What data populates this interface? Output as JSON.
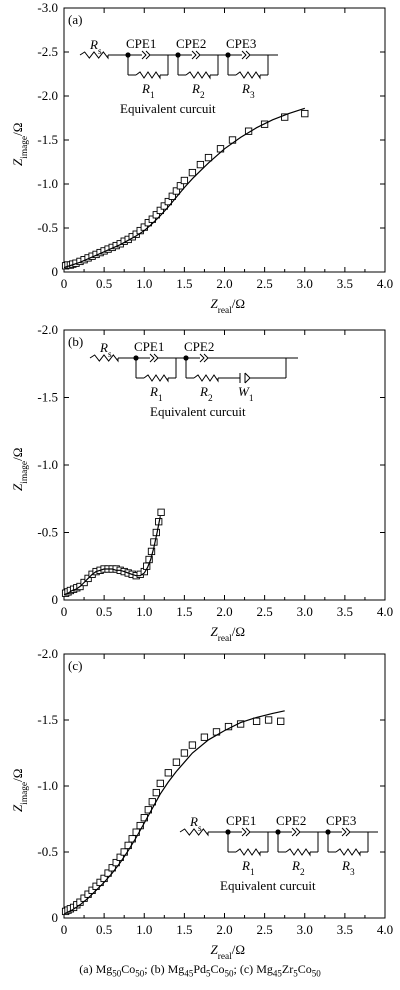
{
  "figure": {
    "caption_parts": [
      {
        "label": "(a)",
        "formula": "Mg50Co50",
        "sep": ";"
      },
      {
        "label": "(b)",
        "formula": "Mg45Pd5Co50",
        "sep": ";"
      },
      {
        "label": "(c)",
        "formula": "Mg45Zr5Co50",
        "sep": ""
      }
    ]
  },
  "chart_data": [
    {
      "type": "scatter",
      "panel_label": "(a)",
      "xlabel": "Zreal/Ω",
      "ylabel": "Zimage/Ω",
      "xlim": [
        0,
        4.0
      ],
      "ylim": [
        0,
        -3.0
      ],
      "xticks": [
        "0",
        "0.5",
        "1.0",
        "1.5",
        "2.0",
        "2.5",
        "3.0",
        "3.5",
        "4.0"
      ],
      "yticks": [
        "0",
        "-0.5",
        "-1.0",
        "-1.5",
        "-2.0",
        "-2.5",
        "-3.0"
      ],
      "series": [
        {
          "kind": "markers",
          "x": [
            0.02,
            0.05,
            0.08,
            0.11,
            0.15,
            0.2,
            0.25,
            0.3,
            0.35,
            0.4,
            0.45,
            0.5,
            0.55,
            0.6,
            0.65,
            0.7,
            0.75,
            0.8,
            0.85,
            0.9,
            0.95,
            1.0,
            1.05,
            1.1,
            1.15,
            1.2,
            1.25,
            1.3,
            1.35,
            1.4,
            1.45,
            1.5,
            1.6,
            1.7,
            1.8,
            1.95,
            2.1,
            2.3,
            2.5,
            2.75,
            3.0
          ],
          "y": [
            -0.07,
            -0.08,
            -0.08,
            -0.09,
            -0.1,
            -0.12,
            -0.14,
            -0.16,
            -0.18,
            -0.2,
            -0.22,
            -0.24,
            -0.26,
            -0.28,
            -0.3,
            -0.32,
            -0.35,
            -0.37,
            -0.4,
            -0.43,
            -0.47,
            -0.51,
            -0.56,
            -0.6,
            -0.65,
            -0.7,
            -0.75,
            -0.8,
            -0.86,
            -0.92,
            -0.98,
            -1.04,
            -1.13,
            -1.22,
            -1.3,
            -1.4,
            -1.5,
            -1.6,
            -1.68,
            -1.76,
            -1.8
          ]
        },
        {
          "kind": "fit",
          "x": [
            0.0,
            0.1,
            0.2,
            0.3,
            0.4,
            0.5,
            0.6,
            0.7,
            0.8,
            0.9,
            1.0,
            1.1,
            1.2,
            1.3,
            1.4,
            1.5,
            1.6,
            1.7,
            1.8,
            2.0,
            2.2,
            2.4,
            2.6,
            2.8,
            3.0
          ],
          "y": [
            -0.05,
            -0.08,
            -0.11,
            -0.15,
            -0.19,
            -0.23,
            -0.27,
            -0.31,
            -0.36,
            -0.41,
            -0.47,
            -0.55,
            -0.64,
            -0.74,
            -0.85,
            -0.96,
            -1.06,
            -1.15,
            -1.24,
            -1.4,
            -1.53,
            -1.64,
            -1.73,
            -1.8,
            -1.86
          ]
        }
      ],
      "inset": {
        "title": "Equivalent curcuit",
        "elements": [
          "Rs",
          "CPE1",
          "CPE2",
          "CPE3",
          "R1",
          "R2",
          "R3"
        ]
      }
    },
    {
      "type": "scatter",
      "panel_label": "(b)",
      "xlabel": "Zreal/Ω",
      "ylabel": "Zimage/Ω",
      "xlim": [
        0,
        4.0
      ],
      "ylim": [
        0,
        -2.0
      ],
      "xticks": [
        "0",
        "0.5",
        "1.0",
        "1.5",
        "2.0",
        "2.5",
        "3.0",
        "3.5",
        "4.0"
      ],
      "yticks": [
        "0",
        "-0.5",
        "-1.0",
        "-1.5",
        "-2.0"
      ],
      "series": [
        {
          "kind": "markers",
          "x": [
            0.02,
            0.05,
            0.08,
            0.12,
            0.16,
            0.2,
            0.25,
            0.3,
            0.35,
            0.4,
            0.45,
            0.5,
            0.55,
            0.6,
            0.65,
            0.7,
            0.75,
            0.8,
            0.85,
            0.9,
            0.95,
            1.0,
            1.03,
            1.06,
            1.09,
            1.12,
            1.15,
            1.18,
            1.21
          ],
          "y": [
            -0.05,
            -0.06,
            -0.07,
            -0.08,
            -0.09,
            -0.1,
            -0.13,
            -0.16,
            -0.19,
            -0.21,
            -0.22,
            -0.23,
            -0.23,
            -0.23,
            -0.23,
            -0.22,
            -0.21,
            -0.2,
            -0.19,
            -0.18,
            -0.19,
            -0.21,
            -0.25,
            -0.3,
            -0.36,
            -0.43,
            -0.5,
            -0.58,
            -0.65
          ]
        },
        {
          "kind": "fit",
          "x": [
            0.0,
            0.05,
            0.1,
            0.15,
            0.2,
            0.25,
            0.3,
            0.35,
            0.4,
            0.45,
            0.5,
            0.55,
            0.6,
            0.65,
            0.7,
            0.75,
            0.8,
            0.85,
            0.9,
            0.95,
            1.0,
            1.04,
            1.08,
            1.12,
            1.16,
            1.2
          ],
          "y": [
            -0.04,
            -0.05,
            -0.07,
            -0.08,
            -0.1,
            -0.13,
            -0.16,
            -0.19,
            -0.21,
            -0.22,
            -0.23,
            -0.23,
            -0.23,
            -0.22,
            -0.22,
            -0.21,
            -0.2,
            -0.19,
            -0.18,
            -0.18,
            -0.2,
            -0.24,
            -0.3,
            -0.39,
            -0.5,
            -0.62
          ]
        }
      ],
      "inset": {
        "title": "Equivalent curcuit",
        "elements": [
          "Rs",
          "CPE1",
          "CPE2",
          "R1",
          "R2",
          "W1"
        ]
      }
    },
    {
      "type": "scatter",
      "panel_label": "(c)",
      "xlabel": "Zreal/Ω",
      "ylabel": "Zimage/Ω",
      "xlim": [
        0,
        4.0
      ],
      "ylim": [
        0,
        -2.0
      ],
      "xticks": [
        "0",
        "0.5",
        "1.0",
        "1.5",
        "2.0",
        "2.5",
        "3.0",
        "3.5",
        "4.0"
      ],
      "yticks": [
        "0",
        "-0.5",
        "-1.0",
        "-1.5",
        "-2.0"
      ],
      "series": [
        {
          "kind": "markers",
          "x": [
            0.02,
            0.05,
            0.08,
            0.12,
            0.16,
            0.2,
            0.25,
            0.3,
            0.35,
            0.4,
            0.45,
            0.5,
            0.55,
            0.6,
            0.65,
            0.7,
            0.75,
            0.8,
            0.85,
            0.9,
            0.95,
            1.0,
            1.05,
            1.1,
            1.15,
            1.2,
            1.3,
            1.4,
            1.5,
            1.6,
            1.75,
            1.9,
            2.05,
            2.2,
            2.4,
            2.55,
            2.7
          ],
          "y": [
            -0.05,
            -0.06,
            -0.07,
            -0.08,
            -0.1,
            -0.12,
            -0.15,
            -0.18,
            -0.21,
            -0.24,
            -0.27,
            -0.3,
            -0.34,
            -0.38,
            -0.42,
            -0.46,
            -0.5,
            -0.55,
            -0.6,
            -0.65,
            -0.7,
            -0.76,
            -0.82,
            -0.88,
            -0.95,
            -1.02,
            -1.1,
            -1.18,
            -1.25,
            -1.31,
            -1.37,
            -1.41,
            -1.45,
            -1.47,
            -1.49,
            -1.5,
            -1.49
          ]
        },
        {
          "kind": "fit",
          "x": [
            0.0,
            0.1,
            0.2,
            0.3,
            0.4,
            0.5,
            0.6,
            0.7,
            0.8,
            0.9,
            1.0,
            1.1,
            1.2,
            1.3,
            1.4,
            1.5,
            1.6,
            1.8,
            2.0,
            2.2,
            2.4,
            2.6,
            2.75
          ],
          "y": [
            -0.03,
            -0.06,
            -0.1,
            -0.15,
            -0.21,
            -0.27,
            -0.34,
            -0.42,
            -0.51,
            -0.61,
            -0.72,
            -0.83,
            -0.94,
            -1.03,
            -1.11,
            -1.18,
            -1.25,
            -1.35,
            -1.42,
            -1.48,
            -1.52,
            -1.55,
            -1.57
          ]
        }
      ],
      "inset": {
        "title": "Equivalent curcuit",
        "elements": [
          "Rs",
          "CPE1",
          "CPE2",
          "CPE3",
          "R1",
          "R2",
          "R3"
        ]
      }
    }
  ]
}
